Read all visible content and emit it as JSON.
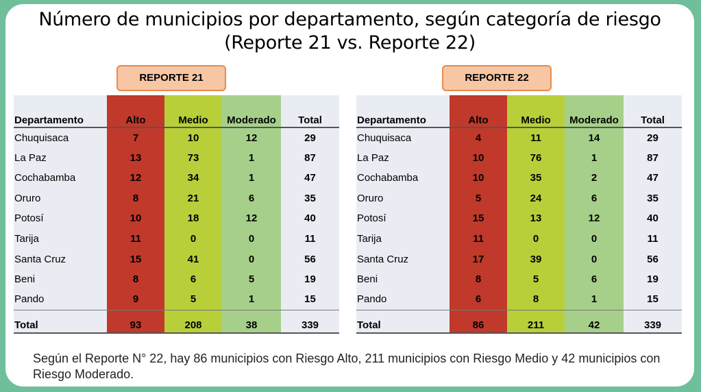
{
  "title_line1": "Número de municipios por departamento, según categoría de riesgo",
  "title_line2": "(Reporte 21 vs. Reporte 22)",
  "report21": {
    "label": "REPORTE 21",
    "headers": [
      "Departamento",
      "Alto",
      "Medio",
      "Moderado",
      "Total"
    ],
    "rows": [
      [
        "Chuquisaca",
        "7",
        "10",
        "12",
        "29"
      ],
      [
        "La Paz",
        "13",
        "73",
        "1",
        "87"
      ],
      [
        "Cochabamba",
        "12",
        "34",
        "1",
        "47"
      ],
      [
        "Oruro",
        "8",
        "21",
        "6",
        "35"
      ],
      [
        "Potosí",
        "10",
        "18",
        "12",
        "40"
      ],
      [
        "Tarija",
        "11",
        "0",
        "0",
        "11"
      ],
      [
        "Santa Cruz",
        "15",
        "41",
        "0",
        "56"
      ],
      [
        "Beni",
        "8",
        "6",
        "5",
        "19"
      ],
      [
        "Pando",
        "9",
        "5",
        "1",
        "15"
      ]
    ],
    "total": [
      "Total",
      "93",
      "208",
      "38",
      "339"
    ]
  },
  "report22": {
    "label": "REPORTE 22",
    "headers": [
      "Departamento",
      "Alto",
      "Medio",
      "Moderado",
      "Total"
    ],
    "rows": [
      [
        "Chuquisaca",
        "4",
        "11",
        "14",
        "29"
      ],
      [
        "La Paz",
        "10",
        "76",
        "1",
        "87"
      ],
      [
        "Cochabamba",
        "10",
        "35",
        "2",
        "47"
      ],
      [
        "Oruro",
        "5",
        "24",
        "6",
        "35"
      ],
      [
        "Potosí",
        "15",
        "13",
        "12",
        "40"
      ],
      [
        "Tarija",
        "11",
        "0",
        "0",
        "11"
      ],
      [
        "Santa Cruz",
        "17",
        "39",
        "0",
        "56"
      ],
      [
        "Beni",
        "8",
        "5",
        "6",
        "19"
      ],
      [
        "Pando",
        "6",
        "8",
        "1",
        "15"
      ]
    ],
    "total": [
      "Total",
      "86",
      "211",
      "42",
      "339"
    ]
  },
  "footer_text": "Según el Reporte N° 22, hay 86 municipios con Riesgo Alto, 211 municipios con Riesgo Medio y 42 municipios con Riesgo Moderado.",
  "colors": {
    "alto": "#c0392b",
    "medio": "#b8cf3a",
    "moderado": "#a6d08a",
    "frame": "#6fbf9a",
    "label_bg": "#f7c6a4",
    "label_border": "#e98a4c"
  }
}
